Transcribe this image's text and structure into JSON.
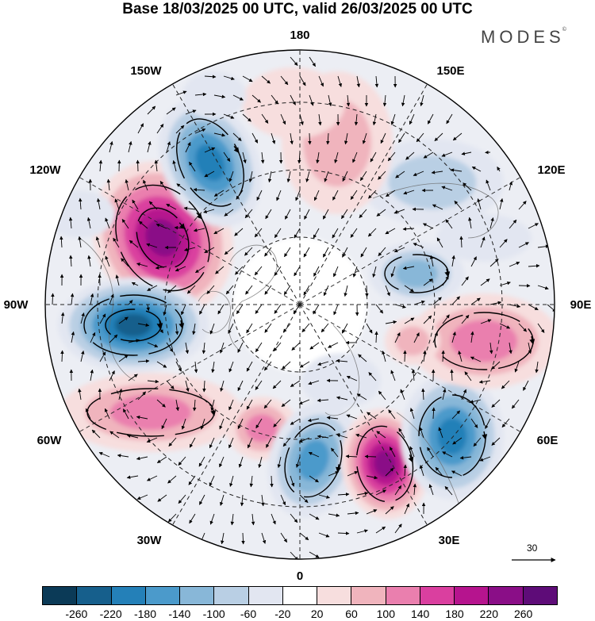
{
  "title": "Base 18/03/2025 00 UTC, valid 26/03/2025 00 UTC",
  "brand": "MODES",
  "brand_mark": "©",
  "longitude_labels": {
    "top": "180",
    "bottom": "0",
    "left": "90W",
    "right": "90E",
    "nw_upper": "150W",
    "nw_lower": "120W",
    "ne_upper": "150E",
    "ne_lower": "120E",
    "sw_upper": "60W",
    "sw_lower": "30W",
    "se_upper": "60E",
    "se_lower": "30E"
  },
  "reference_vector": {
    "label": "30"
  },
  "colorbar": {
    "ticks": [
      "-260",
      "-220",
      "-180",
      "-140",
      "-100",
      "-60",
      "-20",
      "20",
      "60",
      "100",
      "140",
      "180",
      "220",
      "260"
    ],
    "colors": [
      "#0b3a57",
      "#165f8c",
      "#2480b8",
      "#4b9acb",
      "#88b7d8",
      "#b9cfe4",
      "#e2e6f1",
      "#ffffff",
      "#f7dede",
      "#f0b4bd",
      "#ea7fae",
      "#da3f9f",
      "#b6148e",
      "#8a0e87",
      "#5e0c78"
    ]
  }
}
